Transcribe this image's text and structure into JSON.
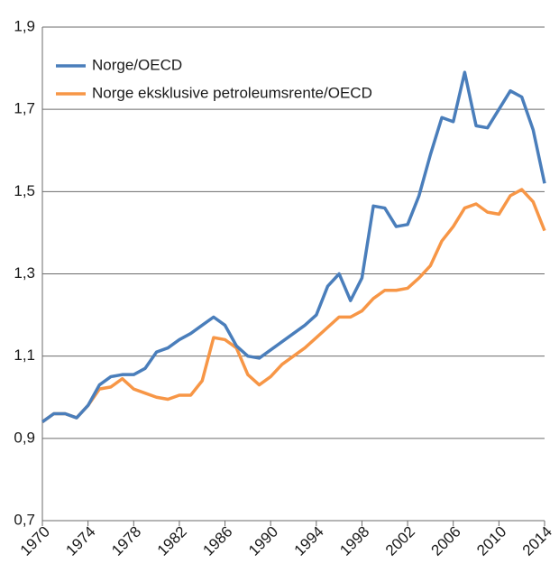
{
  "chart_data": {
    "type": "line",
    "x": [
      1970,
      1971,
      1972,
      1973,
      1974,
      1975,
      1976,
      1977,
      1978,
      1979,
      1980,
      1981,
      1982,
      1983,
      1984,
      1985,
      1986,
      1987,
      1988,
      1989,
      1990,
      1991,
      1992,
      1993,
      1994,
      1995,
      1996,
      1997,
      1998,
      1999,
      2000,
      2001,
      2002,
      2003,
      2004,
      2005,
      2006,
      2007,
      2008,
      2009,
      2010,
      2011,
      2012,
      2013,
      2014
    ],
    "series": [
      {
        "name": "Norge/OECD",
        "color": "#4a7ebb",
        "values": [
          0.94,
          0.96,
          0.96,
          0.95,
          0.98,
          1.03,
          1.05,
          1.055,
          1.055,
          1.07,
          1.11,
          1.12,
          1.14,
          1.155,
          1.175,
          1.195,
          1.175,
          1.125,
          1.1,
          1.095,
          1.115,
          1.135,
          1.155,
          1.175,
          1.2,
          1.27,
          1.3,
          1.235,
          1.29,
          1.465,
          1.46,
          1.415,
          1.42,
          1.49,
          1.59,
          1.68,
          1.67,
          1.79,
          1.66,
          1.655,
          1.7,
          1.745,
          1.73,
          1.65,
          1.52
        ]
      },
      {
        "name": "Norge eksklusive petroleumsrente/OECD",
        "color": "#f79646",
        "values": [
          0.94,
          0.96,
          0.96,
          0.95,
          0.98,
          1.02,
          1.025,
          1.045,
          1.02,
          1.01,
          1.0,
          0.995,
          1.005,
          1.005,
          1.04,
          1.145,
          1.14,
          1.12,
          1.055,
          1.03,
          1.05,
          1.08,
          1.1,
          1.12,
          1.145,
          1.17,
          1.195,
          1.195,
          1.21,
          1.24,
          1.26,
          1.26,
          1.265,
          1.29,
          1.32,
          1.38,
          1.415,
          1.46,
          1.47,
          1.45,
          1.445,
          1.49,
          1.505,
          1.475,
          1.405
        ]
      }
    ],
    "xlim": [
      1970,
      2014
    ],
    "xticks": [
      1970,
      1974,
      1978,
      1982,
      1986,
      1990,
      1994,
      1998,
      2002,
      2006,
      2010,
      2014
    ],
    "ylim": [
      0.7,
      1.9
    ],
    "yticks": [
      {
        "value": 0.7,
        "label": "0,7"
      },
      {
        "value": 0.9,
        "label": "0,9"
      },
      {
        "value": 1.1,
        "label": "1,1"
      },
      {
        "value": 1.3,
        "label": "1,3"
      },
      {
        "value": 1.5,
        "label": "1,5"
      },
      {
        "value": 1.7,
        "label": "1,7"
      },
      {
        "value": 1.9,
        "label": "1,9"
      }
    ],
    "grid": true,
    "legend": "top-left"
  }
}
